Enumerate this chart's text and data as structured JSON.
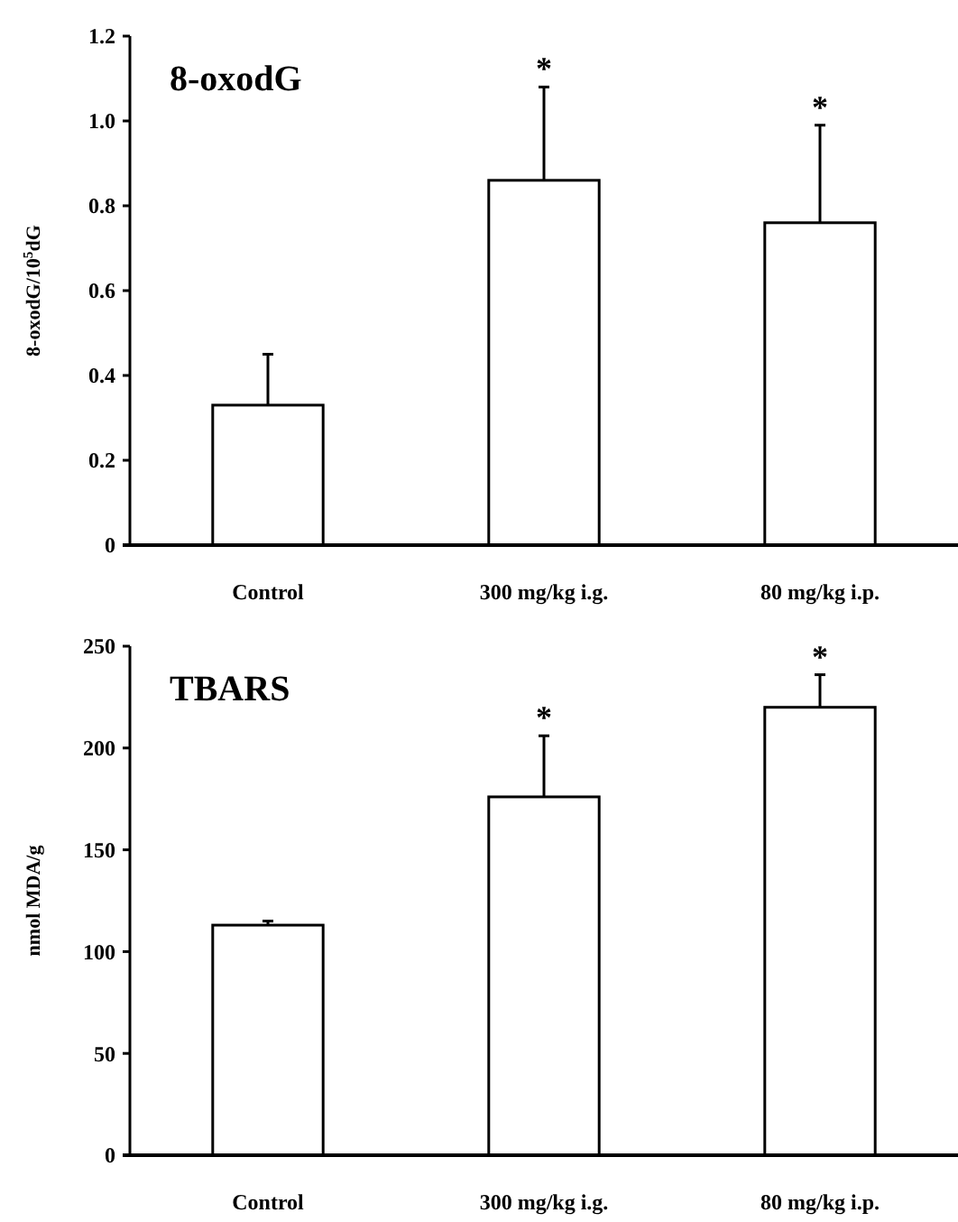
{
  "chart_data": [
    {
      "type": "bar",
      "title": "8-oxodG",
      "ylabel": "8-oxodG/10$^{5}$dG",
      "categories": [
        "Control",
        "300 mg/kg i.g.",
        "80 mg/kg i.p."
      ],
      "values": [
        0.33,
        0.86,
        0.76
      ],
      "color": "#ffffff",
      "errors": [
        [
          0.33,
          0.45
        ],
        [
          0.86,
          1.08
        ],
        [
          0.76,
          0.99
        ]
      ],
      "ylim": [
        0,
        1.2
      ],
      "yticks": [
        {
          "value": 0,
          "label": "0"
        },
        0.2,
        0.4,
        0.6,
        0.8,
        {
          "value": 1,
          "label": "1.0"
        },
        1.2
      ],
      "grid": false,
      "annotations": [
        {
          "text": "*",
          "x": "300 mg/kg i.g.",
          "y": 1.08
        },
        {
          "text": "*",
          "x": "80 mg/kg i.p.",
          "y": 0.99
        }
      ]
    },
    {
      "type": "bar",
      "title": "TBARS",
      "ylabel": "nmol MDA/g",
      "categories": [
        "Control",
        "300 mg/kg i.g.",
        "80 mg/kg i.p."
      ],
      "values": [
        113,
        176,
        220
      ],
      "color": "#ffffff",
      "errors": [
        [
          113,
          115
        ],
        [
          176,
          206
        ],
        [
          220,
          236
        ]
      ],
      "ylim": [
        0,
        250
      ],
      "yticks": [
        0,
        50,
        100,
        150,
        200,
        250
      ],
      "grid": false,
      "annotations": [
        {
          "text": "*",
          "x": "300 mg/kg i.g.",
          "y": 206
        },
        {
          "text": "*",
          "x": "80 mg/kg i.p.",
          "y": 236
        }
      ]
    }
  ]
}
